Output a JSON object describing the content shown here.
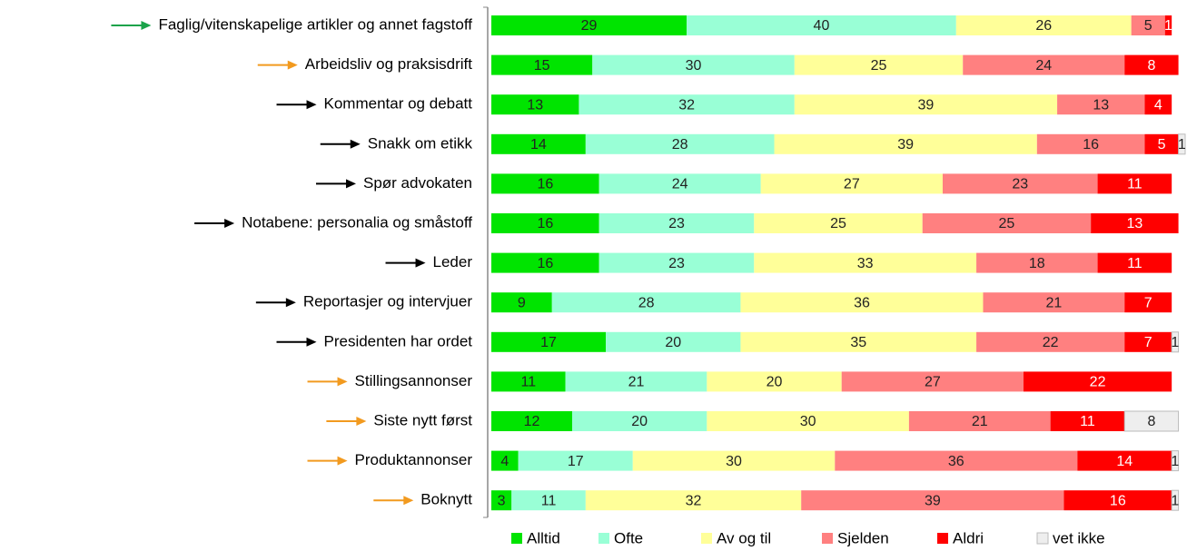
{
  "chart_data": {
    "type": "stacked_bar",
    "categories": [
      "Faglig/vitenskapelige artikler og annet fagstoff",
      "Arbeidsliv og praksisdrift",
      "Kommentar og debatt",
      "Snakk om etikk",
      "Spør advokaten",
      "Notabene: personalia og småstoff",
      "Leder",
      "Reportasjer og intervjuer",
      "Presidenten har ordet",
      "Stillingsannonser",
      "Siste nytt først",
      "Produktannonser",
      "Boknytt"
    ],
    "arrow_colors": [
      "#1aa34a",
      "#f29a1f",
      "#000000",
      "#000000",
      "#000000",
      "#000000",
      "#000000",
      "#000000",
      "#000000",
      "#f29a1f",
      "#f29a1f",
      "#f29a1f",
      "#f29a1f"
    ],
    "series": [
      {
        "name": "Alltid",
        "color": "#00e400",
        "values": [
          29,
          15,
          13,
          14,
          16,
          16,
          16,
          9,
          17,
          11,
          12,
          4,
          3
        ]
      },
      {
        "name": "Ofte",
        "color": "#99ffd6",
        "values": [
          40,
          30,
          32,
          28,
          24,
          23,
          23,
          28,
          20,
          21,
          20,
          17,
          11
        ]
      },
      {
        "name": "Av og til",
        "color": "#ffff99",
        "values": [
          26,
          25,
          39,
          39,
          27,
          25,
          33,
          36,
          35,
          20,
          30,
          30,
          32
        ]
      },
      {
        "name": "Sjelden",
        "color": "#ff8080",
        "values": [
          5,
          24,
          13,
          16,
          23,
          25,
          18,
          21,
          22,
          27,
          21,
          36,
          39
        ]
      },
      {
        "name": "Aldri",
        "color": "#ff0000",
        "values": [
          1,
          8,
          4,
          5,
          11,
          13,
          11,
          7,
          7,
          22,
          11,
          14,
          16
        ]
      },
      {
        "name": "vet ikke",
        "color": "#eeeeee",
        "values": [
          null,
          null,
          null,
          1,
          null,
          null,
          null,
          null,
          1,
          null,
          8,
          1,
          1
        ]
      }
    ],
    "xlim": [
      0,
      103
    ]
  }
}
